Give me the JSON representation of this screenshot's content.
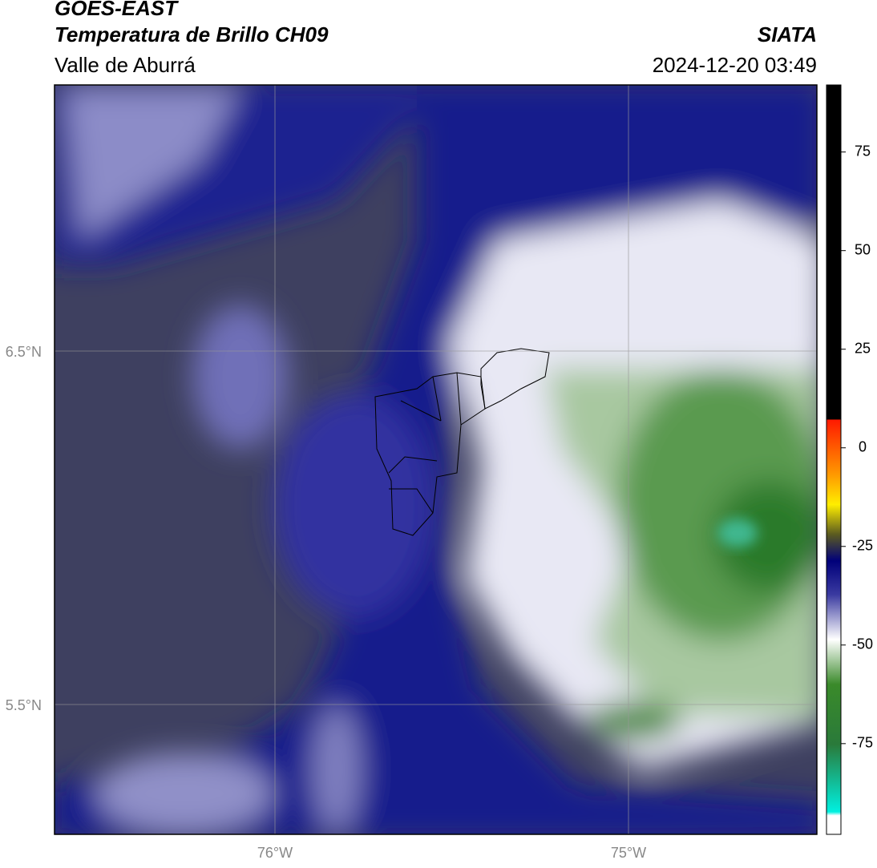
{
  "header": {
    "title": "GOES-EAST",
    "subtitle": "Temperatura de Brillo CH09",
    "region": "Valle de Aburrá",
    "source": "SIATA",
    "datetime": "2024-12-20 03:49"
  },
  "map": {
    "lat_labels": [
      "6.5°N",
      "5.5°N"
    ],
    "lon_labels": [
      "76°W",
      "75°W"
    ]
  },
  "colorbar": {
    "range": [
      -98,
      92
    ],
    "ticks": [
      75,
      50,
      25,
      0,
      -25,
      -50,
      -75
    ]
  }
}
